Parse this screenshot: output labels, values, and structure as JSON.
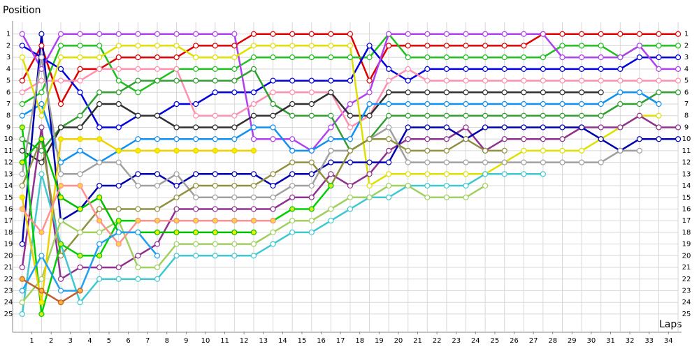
{
  "chart_data": {
    "type": "line",
    "x_label": "Laps",
    "y_label": "Position",
    "x": [
      0,
      1,
      2,
      3,
      4,
      5,
      6,
      7,
      8,
      9,
      10,
      11,
      12,
      13,
      14,
      15,
      16,
      17,
      18,
      19,
      20,
      21,
      22,
      23,
      24,
      25,
      26,
      27,
      28,
      29,
      30,
      31,
      32,
      33,
      34
    ],
    "xlim": [
      -0.5,
      34.2
    ],
    "xticks": [
      {
        "value": 0.5,
        "label": "1"
      },
      {
        "value": 1.5,
        "label": "2"
      },
      {
        "value": 2.5,
        "label": "3"
      },
      {
        "value": 3.5,
        "label": "4"
      },
      {
        "value": 4.5,
        "label": "5"
      },
      {
        "value": 5.5,
        "label": "6"
      },
      {
        "value": 6.5,
        "label": "7"
      },
      {
        "value": 7.5,
        "label": "8"
      },
      {
        "value": 8.5,
        "label": "9"
      },
      {
        "value": 9.5,
        "label": "10"
      },
      {
        "value": 10.5,
        "label": "11"
      },
      {
        "value": 11.5,
        "label": "12"
      },
      {
        "value": 12.5,
        "label": "13"
      },
      {
        "value": 13.5,
        "label": "14"
      },
      {
        "value": 14.5,
        "label": "15"
      },
      {
        "value": 15.5,
        "label": "16"
      },
      {
        "value": 16.5,
        "label": "17"
      },
      {
        "value": 17.5,
        "label": "18"
      },
      {
        "value": 18.5,
        "label": "19"
      },
      {
        "value": 19.5,
        "label": "20"
      },
      {
        "value": 20.5,
        "label": "21"
      },
      {
        "value": 21.5,
        "label": "22"
      },
      {
        "value": 22.5,
        "label": "23"
      },
      {
        "value": 23.5,
        "label": "24"
      },
      {
        "value": 24.5,
        "label": "25"
      },
      {
        "value": 25.5,
        "label": "26"
      },
      {
        "value": 26.5,
        "label": "27"
      },
      {
        "value": 27.5,
        "label": "28"
      },
      {
        "value": 28.5,
        "label": "29"
      },
      {
        "value": 29.5,
        "label": "30"
      },
      {
        "value": 30.5,
        "label": "31"
      },
      {
        "value": 31.5,
        "label": "32"
      },
      {
        "value": 32.5,
        "label": "33"
      },
      {
        "value": 33.5,
        "label": "34"
      }
    ],
    "ylim": [
      0,
      26.5
    ],
    "y_inverted": true,
    "yticks": [
      1,
      2,
      3,
      4,
      5,
      6,
      7,
      8,
      9,
      10,
      11,
      12,
      13,
      14,
      15,
      16,
      17,
      18,
      19,
      20,
      21,
      22,
      23,
      24,
      25
    ],
    "grid": true,
    "series": [
      {
        "color": "#e00000",
        "marker_color": "#ffffff",
        "values": [
          5,
          2,
          7,
          4,
          4,
          3,
          3,
          3,
          3,
          2,
          2,
          2,
          1,
          1,
          1,
          1,
          1,
          1,
          5,
          2,
          2,
          2,
          2,
          2,
          2,
          2,
          2,
          1,
          1,
          1,
          1,
          1,
          1,
          1,
          1
        ]
      },
      {
        "color": "#20c020",
        "marker_color": "#ffffff",
        "values": [
          7,
          6,
          2,
          2,
          2,
          5,
          6,
          5,
          4,
          4,
          4,
          4,
          3,
          3,
          3,
          3,
          3,
          3,
          3,
          1,
          3,
          3,
          3,
          3,
          3,
          3,
          3,
          3,
          2,
          2,
          2,
          3,
          2,
          2,
          2
        ]
      },
      {
        "color": "#0000e0",
        "marker_color": "#ffffff",
        "values": [
          2,
          3,
          4,
          6,
          9,
          9,
          8,
          8,
          7,
          7,
          6,
          6,
          6,
          5,
          5,
          5,
          5,
          5,
          2,
          4,
          5,
          4,
          4,
          4,
          4,
          4,
          4,
          4,
          4,
          4,
          4,
          4,
          3,
          3,
          3
        ]
      },
      {
        "color": "#b040f0",
        "marker_color": "#ffffff",
        "values": [
          1,
          4,
          1,
          1,
          1,
          1,
          1,
          1,
          1,
          1,
          1,
          1,
          10,
          10,
          10,
          11,
          9,
          7,
          6,
          1,
          1,
          1,
          1,
          1,
          1,
          1,
          1,
          1,
          3,
          3,
          3,
          3,
          2,
          4,
          4
        ]
      },
      {
        "color": "#ff90b0",
        "marker_color": "#ffffff",
        "values": [
          6,
          5,
          5,
          5,
          4,
          4,
          4,
          4,
          4,
          8,
          8,
          8,
          7,
          6,
          6,
          6,
          6,
          9,
          8,
          5,
          4,
          5,
          5,
          5,
          5,
          5,
          5,
          5,
          5,
          5,
          5,
          5,
          5,
          5,
          5
        ]
      },
      {
        "color": "#30a030",
        "marker_color": "#ffffff",
        "values": [
          10,
          11,
          9,
          8,
          6,
          6,
          5,
          5,
          5,
          5,
          5,
          5,
          4,
          7,
          8,
          8,
          8,
          11,
          10,
          8,
          8,
          8,
          8,
          8,
          8,
          8,
          8,
          8,
          8,
          8,
          8,
          7,
          7,
          6,
          6
        ]
      },
      {
        "color": "#303030",
        "marker_color": "#ffffff",
        "values": [
          11,
          12,
          9,
          9,
          7,
          7,
          8,
          8,
          9,
          9,
          9,
          9,
          8,
          8,
          7,
          7,
          6,
          8,
          8,
          6,
          6,
          6,
          6,
          6,
          6,
          6,
          6,
          6,
          6,
          6,
          6,
          null,
          null,
          null,
          null
        ]
      },
      {
        "color": "#1090f0",
        "marker_color": "#ffffff",
        "values": [
          8,
          7,
          12,
          11,
          12,
          11,
          10,
          10,
          10,
          10,
          10,
          10,
          9,
          9,
          11,
          11,
          10,
          10,
          7,
          7,
          7,
          7,
          7,
          7,
          7,
          7,
          7,
          7,
          7,
          7,
          7,
          6,
          6,
          7,
          null
        ]
      },
      {
        "color": "#e0e000",
        "marker_color": "#ffffff",
        "values": [
          3,
          8,
          3,
          3,
          3,
          2,
          2,
          2,
          2,
          3,
          3,
          3,
          2,
          2,
          2,
          2,
          2,
          2,
          14,
          13,
          13,
          13,
          13,
          13,
          13,
          12,
          11,
          11,
          11,
          11,
          10,
          9,
          8,
          8,
          null
        ]
      },
      {
        "color": "#903090",
        "marker_color": "#ffffff",
        "values": [
          21,
          9,
          22,
          21,
          21,
          21,
          20,
          19,
          16,
          16,
          16,
          16,
          16,
          16,
          15,
          15,
          13,
          14,
          13,
          11,
          10,
          10,
          10,
          9,
          11,
          10,
          10,
          10,
          10,
          9,
          9,
          9,
          8,
          9,
          9
        ]
      },
      {
        "color": "#0000b0",
        "marker_color": "#ffffff",
        "values": [
          19,
          1,
          17,
          16,
          14,
          14,
          13,
          13,
          14,
          13,
          13,
          13,
          13,
          14,
          13,
          13,
          12,
          12,
          12,
          12,
          9,
          9,
          9,
          10,
          9,
          9,
          9,
          9,
          9,
          9,
          10,
          11,
          10,
          10,
          10
        ]
      },
      {
        "color": "#a0a0a0",
        "marker_color": "#ffffff",
        "values": [
          13,
          3,
          13,
          13,
          12,
          12,
          14,
          14,
          13,
          15,
          15,
          15,
          15,
          15,
          14,
          14,
          11,
          11,
          10,
          9,
          12,
          12,
          12,
          12,
          12,
          12,
          12,
          12,
          12,
          12,
          12,
          11,
          11,
          null,
          null
        ]
      },
      {
        "color": "#909040",
        "marker_color": "#ffffff",
        "values": [
          14,
          10,
          20,
          18,
          16,
          16,
          16,
          16,
          15,
          14,
          14,
          14,
          14,
          13,
          12,
          12,
          14,
          11,
          10,
          10,
          11,
          11,
          11,
          10,
          11,
          11,
          null,
          null,
          null,
          null,
          null,
          null,
          null,
          null,
          null
        ]
      },
      {
        "color": "#40c8d0",
        "marker_color": "#ffffff",
        "values": [
          25,
          13,
          19,
          24,
          22,
          22,
          22,
          22,
          20,
          20,
          20,
          20,
          20,
          19,
          18,
          18,
          17,
          16,
          15,
          15,
          14,
          14,
          14,
          14,
          13,
          13,
          13,
          13,
          null,
          null,
          null,
          null,
          null,
          null,
          null
        ]
      },
      {
        "color": "#a0d060",
        "marker_color": "#ffffff",
        "values": [
          24,
          22,
          17,
          18,
          18,
          17,
          21,
          21,
          19,
          19,
          19,
          19,
          19,
          18,
          17,
          17,
          16,
          15,
          15,
          14,
          14,
          15,
          15,
          15,
          14,
          null,
          null,
          null,
          null,
          null,
          null,
          null,
          null,
          null,
          null
        ]
      },
      {
        "color": "#00d000",
        "marker_color": "#d8e820",
        "values": [
          9,
          25,
          19,
          20,
          20,
          17,
          17,
          17,
          17,
          17,
          17,
          17,
          17,
          17,
          16,
          16,
          14,
          null,
          null,
          null,
          null,
          null,
          null,
          null,
          null,
          null,
          null,
          null,
          null,
          null,
          null,
          null,
          null,
          null,
          null
        ]
      },
      {
        "color": "#f0d000",
        "marker_color": "#f0f000",
        "values": [
          15,
          24,
          10,
          10,
          10,
          11,
          11,
          11,
          11,
          11,
          11,
          11,
          11,
          null,
          null,
          null,
          null,
          null,
          null,
          null,
          null,
          null,
          null,
          null,
          null,
          null,
          null,
          null,
          null,
          null,
          null,
          null,
          null,
          null,
          null
        ]
      },
      {
        "color": "#00c000",
        "marker_color": "#f0f000",
        "values": [
          12,
          10,
          15,
          16,
          15,
          18,
          18,
          18,
          18,
          18,
          18,
          18,
          18,
          null,
          null,
          null,
          null,
          null,
          null,
          null,
          null,
          null,
          null,
          null,
          null,
          null,
          null,
          null,
          null,
          null,
          null,
          null,
          null,
          null,
          null
        ]
      },
      {
        "color": "#ff9090",
        "marker_color": "#ffd040",
        "values": [
          16,
          18,
          14,
          14,
          17,
          19,
          17,
          17,
          17,
          17,
          17,
          17,
          17,
          17,
          null,
          null,
          null,
          null,
          null,
          null,
          null,
          null,
          null,
          null,
          null,
          null,
          null,
          null,
          null,
          null,
          null,
          null,
          null,
          null,
          null
        ]
      },
      {
        "color": "#20a0f0",
        "marker_color": "#ffffff",
        "values": [
          23,
          20,
          23,
          23,
          19,
          18,
          18,
          20,
          null,
          null,
          null,
          null,
          null,
          null,
          null,
          null,
          null,
          null,
          null,
          null,
          null,
          null,
          null,
          null,
          null,
          null,
          null,
          null,
          null,
          null,
          null,
          null,
          null,
          null,
          null
        ]
      },
      {
        "color": "#c06030",
        "marker_color": "#ffb030",
        "values": [
          22,
          23,
          24,
          23,
          null,
          null,
          null,
          null,
          null,
          null,
          null,
          null,
          null,
          null,
          null,
          null,
          null,
          null,
          null,
          null,
          null,
          null,
          null,
          null,
          null,
          null,
          null,
          null,
          null,
          null,
          null,
          null,
          null,
          null,
          null
        ]
      }
    ]
  }
}
